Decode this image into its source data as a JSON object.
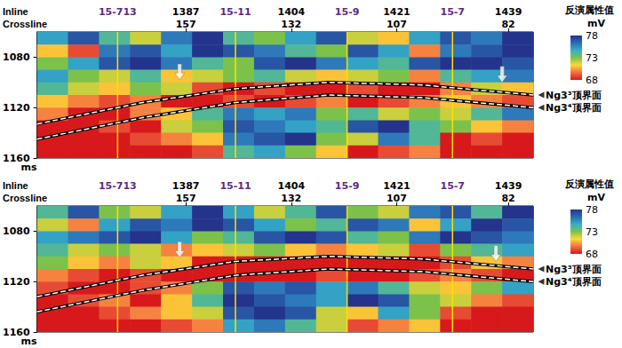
{
  "chart_data": [
    {
      "type": "heatmap",
      "x_label": "Inline",
      "x2_label": "Crossline",
      "y_label": "ms",
      "xlim": [
        1363,
        1443
      ],
      "xticks": [
        1387,
        1404,
        1421,
        1439
      ],
      "x2ticks": [
        {
          "value": 1387,
          "label": "157"
        },
        {
          "value": 1404,
          "label": "132"
        },
        {
          "value": 1421,
          "label": "107"
        },
        {
          "value": 1439,
          "label": "82"
        }
      ],
      "ylim": [
        1060,
        1160
      ],
      "yticks": [
        1080,
        1120,
        1160
      ],
      "colorbar": {
        "title": "反演属性值",
        "unit": "mV",
        "range": [
          68,
          78
        ],
        "ticks": [
          68,
          73,
          78
        ],
        "colors": [
          "#d7191c",
          "#f46d43",
          "#fdd835",
          "#7cc24a",
          "#35b0c9",
          "#2c6bb5",
          "#24338c"
        ]
      },
      "cells": {
        "x_edges": [
          1363,
          1368,
          1373,
          1378,
          1383,
          1388,
          1393,
          1398,
          1403,
          1408,
          1413,
          1418,
          1423,
          1428,
          1433,
          1438,
          1443
        ],
        "y_edges": [
          1060,
          1070,
          1080,
          1090,
          1100,
          1110,
          1120,
          1130,
          1140,
          1150,
          1160
        ],
        "values": [
          [
            75,
            77,
            74,
            72,
            76,
            78,
            74,
            73,
            75,
            77,
            72,
            71,
            75,
            77,
            76,
            78
          ],
          [
            71,
            69,
            76,
            77,
            75,
            78,
            77,
            76,
            74,
            73,
            77,
            75,
            70,
            76,
            77,
            78
          ],
          [
            73,
            75,
            77,
            78,
            76,
            74,
            73,
            77,
            78,
            76,
            75,
            74,
            77,
            78,
            78,
            77
          ],
          [
            75,
            73,
            72,
            74,
            71,
            72,
            73,
            74,
            72,
            71,
            72,
            73,
            70,
            74,
            75,
            76
          ],
          [
            74,
            72,
            71,
            73,
            72,
            69,
            68,
            69,
            68,
            68,
            69,
            68,
            68,
            70,
            72,
            71
          ],
          [
            71,
            70,
            69,
            70,
            68,
            68,
            69,
            68,
            69,
            70,
            68,
            69,
            70,
            71,
            70,
            69
          ],
          [
            70,
            68,
            68,
            70,
            71,
            74,
            76,
            75,
            76,
            73,
            74,
            72,
            73,
            72,
            74,
            76
          ],
          [
            68,
            68,
            69,
            68,
            72,
            73,
            77,
            76,
            75,
            74,
            77,
            78,
            74,
            73,
            71,
            70
          ],
          [
            68,
            68,
            68,
            69,
            70,
            71,
            76,
            77,
            78,
            73,
            72,
            76,
            74,
            68,
            69,
            68
          ],
          [
            68,
            68,
            68,
            68,
            68,
            69,
            74,
            75,
            73,
            71,
            68,
            69,
            70,
            68,
            68,
            68
          ]
        ]
      },
      "wells": {
        "color": "#ffe000",
        "items": [
          {
            "name": "15-713",
            "inline": 1376
          },
          {
            "name": "15-11",
            "inline": 1395
          },
          {
            "name": "15-9",
            "inline": 1413
          },
          {
            "name": "15-7",
            "inline": 1430
          }
        ]
      },
      "horizons": [
        {
          "name": "Ng3³顶界面",
          "color": "#ffffff",
          "line_style": "dashed",
          "points": [
            [
              1363,
              1133
            ],
            [
              1380,
              1116
            ],
            [
              1395,
              1105
            ],
            [
              1410,
              1100
            ],
            [
              1425,
              1102
            ],
            [
              1443,
              1110
            ]
          ]
        },
        {
          "name": "Ng3⁴顶界面",
          "color": "#ffffff",
          "line_style": "dashed",
          "points": [
            [
              1363,
              1145
            ],
            [
              1380,
              1128
            ],
            [
              1395,
              1116
            ],
            [
              1410,
              1110
            ],
            [
              1425,
              1112
            ],
            [
              1443,
              1120
            ]
          ]
        }
      ],
      "arrows": {
        "color": "#ffffff",
        "points": [
          [
            1386,
            1098
          ],
          [
            1438,
            1100
          ]
        ]
      }
    },
    {
      "type": "heatmap",
      "x_label": "Inline",
      "x2_label": "Crossline",
      "y_label": "ms",
      "xlim": [
        1363,
        1443
      ],
      "xticks": [
        1387,
        1404,
        1421,
        1439
      ],
      "x2ticks": [
        {
          "value": 1387,
          "label": "157"
        },
        {
          "value": 1404,
          "label": "132"
        },
        {
          "value": 1421,
          "label": "107"
        },
        {
          "value": 1439,
          "label": "82"
        }
      ],
      "ylim": [
        1060,
        1160
      ],
      "yticks": [
        1080,
        1120,
        1160
      ],
      "colorbar": {
        "title": "反演属性值",
        "unit": "mV",
        "range": [
          68,
          78
        ],
        "ticks": [
          68,
          73,
          78
        ],
        "colors": [
          "#d7191c",
          "#f46d43",
          "#fdd835",
          "#7cc24a",
          "#35b0c9",
          "#2c6bb5",
          "#24338c"
        ]
      },
      "cells": {
        "x_edges": [
          1363,
          1368,
          1373,
          1378,
          1383,
          1388,
          1393,
          1398,
          1403,
          1408,
          1413,
          1418,
          1423,
          1428,
          1433,
          1438,
          1443
        ],
        "y_edges": [
          1060,
          1070,
          1080,
          1090,
          1100,
          1110,
          1120,
          1130,
          1140,
          1150,
          1160
        ],
        "values": [
          [
            74,
            77,
            73,
            72,
            75,
            78,
            75,
            72,
            74,
            77,
            73,
            72,
            76,
            77,
            74,
            78
          ],
          [
            72,
            70,
            75,
            77,
            76,
            78,
            77,
            75,
            73,
            74,
            77,
            76,
            71,
            75,
            78,
            77
          ],
          [
            75,
            76,
            77,
            78,
            75,
            73,
            74,
            77,
            78,
            77,
            74,
            73,
            76,
            78,
            77,
            76
          ],
          [
            74,
            72,
            73,
            72,
            70,
            71,
            72,
            73,
            71,
            70,
            71,
            72,
            69,
            73,
            74,
            75
          ],
          [
            73,
            71,
            70,
            72,
            71,
            68,
            68,
            68,
            68,
            68,
            68,
            68,
            68,
            69,
            71,
            70
          ],
          [
            70,
            69,
            68,
            69,
            68,
            68,
            68,
            68,
            68,
            69,
            68,
            68,
            69,
            70,
            69,
            68
          ],
          [
            69,
            68,
            68,
            69,
            70,
            73,
            77,
            76,
            77,
            75,
            76,
            74,
            72,
            71,
            73,
            75
          ],
          [
            68,
            69,
            70,
            68,
            71,
            74,
            78,
            77,
            76,
            75,
            78,
            77,
            73,
            72,
            70,
            69
          ],
          [
            68,
            68,
            69,
            70,
            71,
            72,
            77,
            78,
            77,
            72,
            71,
            75,
            73,
            69,
            68,
            68
          ],
          [
            68,
            68,
            68,
            68,
            69,
            70,
            75,
            76,
            74,
            72,
            69,
            70,
            71,
            68,
            68,
            68
          ]
        ]
      },
      "wells": {
        "color": "#ffe000",
        "items": [
          {
            "name": "15-713",
            "inline": 1376
          },
          {
            "name": "15-11",
            "inline": 1395
          },
          {
            "name": "15-9",
            "inline": 1413
          },
          {
            "name": "15-7",
            "inline": 1430
          }
        ]
      },
      "horizons": [
        {
          "name": "Ng3³顶界面",
          "color": "#ffffff",
          "line_style": "dashed",
          "points": [
            [
              1363,
              1132
            ],
            [
              1380,
              1115
            ],
            [
              1395,
              1104
            ],
            [
              1410,
              1100
            ],
            [
              1425,
              1102
            ],
            [
              1443,
              1110
            ]
          ]
        },
        {
          "name": "Ng3⁴顶界面",
          "color": "#ffffff",
          "line_style": "dashed",
          "points": [
            [
              1363,
              1144
            ],
            [
              1380,
              1127
            ],
            [
              1395,
              1115
            ],
            [
              1410,
              1110
            ],
            [
              1425,
              1112
            ],
            [
              1443,
              1120
            ]
          ]
        }
      ],
      "arrows": {
        "color": "#ffffff",
        "points": [
          [
            1386,
            1101
          ],
          [
            1437,
            1104
          ]
        ]
      }
    }
  ]
}
